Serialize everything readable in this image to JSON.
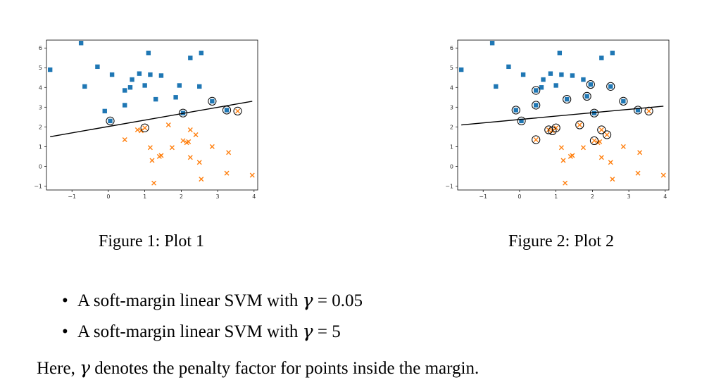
{
  "figures": [
    {
      "caption": "Figure 1: Plot 1",
      "chart_data": {
        "type": "scatter",
        "xlim": [
          -1.7,
          4.1
        ],
        "ylim": [
          -1.2,
          6.4
        ],
        "xticks": [
          -1,
          0,
          1,
          2,
          3,
          4
        ],
        "yticks": [
          -1,
          0,
          1,
          2,
          3,
          4,
          5,
          6
        ],
        "grid": false,
        "series": [
          {
            "marker": "square",
            "color": "#1f77b4",
            "points": [
              [
                -1.6,
                4.9
              ],
              [
                -0.75,
                6.25
              ],
              [
                -0.65,
                4.05
              ],
              [
                -0.3,
                5.05
              ],
              [
                -0.1,
                2.8
              ],
              [
                0.1,
                4.65
              ],
              [
                0.05,
                2.3
              ],
              [
                0.45,
                3.85
              ],
              [
                0.45,
                3.1
              ],
              [
                0.6,
                4.0
              ],
              [
                0.65,
                4.4
              ],
              [
                0.85,
                4.7
              ],
              [
                1.0,
                4.1
              ],
              [
                1.1,
                5.75
              ],
              [
                1.15,
                4.65
              ],
              [
                1.3,
                3.4
              ],
              [
                1.45,
                4.6
              ],
              [
                1.85,
                3.5
              ],
              [
                1.95,
                4.1
              ],
              [
                2.05,
                2.7
              ],
              [
                2.25,
                5.5
              ],
              [
                2.5,
                4.05
              ],
              [
                2.55,
                5.75
              ],
              [
                2.85,
                3.3
              ],
              [
                3.25,
                2.85
              ]
            ]
          },
          {
            "marker": "x",
            "color": "#ff7f0e",
            "points": [
              [
                0.45,
                1.35
              ],
              [
                0.8,
                1.85
              ],
              [
                0.9,
                1.8
              ],
              [
                1.0,
                1.95
              ],
              [
                1.15,
                0.95
              ],
              [
                1.2,
                0.3
              ],
              [
                1.25,
                -0.85
              ],
              [
                1.4,
                0.5
              ],
              [
                1.45,
                0.55
              ],
              [
                1.65,
                2.1
              ],
              [
                1.75,
                0.95
              ],
              [
                2.05,
                1.3
              ],
              [
                2.15,
                1.2
              ],
              [
                2.2,
                1.25
              ],
              [
                2.25,
                1.85
              ],
              [
                2.25,
                0.45
              ],
              [
                2.4,
                1.6
              ],
              [
                2.5,
                0.2
              ],
              [
                2.55,
                -0.65
              ],
              [
                2.85,
                1.0
              ],
              [
                3.25,
                -0.35
              ],
              [
                3.3,
                0.7
              ],
              [
                3.55,
                2.8
              ],
              [
                3.95,
                -0.45
              ]
            ]
          }
        ],
        "circled": [
          [
            0.05,
            2.3
          ],
          [
            1.0,
            1.95
          ],
          [
            2.05,
            2.7
          ],
          [
            2.85,
            3.3
          ],
          [
            3.25,
            2.85
          ],
          [
            3.55,
            2.8
          ]
        ],
        "boundary": [
          [
            -1.6,
            1.5
          ],
          [
            3.95,
            3.3
          ]
        ]
      }
    },
    {
      "caption": "Figure 2: Plot 2",
      "chart_data": {
        "type": "scatter",
        "xlim": [
          -1.7,
          4.1
        ],
        "ylim": [
          -1.2,
          6.4
        ],
        "xticks": [
          -1,
          0,
          1,
          2,
          3,
          4
        ],
        "yticks": [
          -1,
          0,
          1,
          2,
          3,
          4,
          5,
          6
        ],
        "grid": false,
        "series": [
          {
            "marker": "square",
            "color": "#1f77b4",
            "points": [
              [
                -1.6,
                4.9
              ],
              [
                -0.75,
                6.25
              ],
              [
                -0.65,
                4.05
              ],
              [
                -0.3,
                5.05
              ],
              [
                -0.1,
                2.85
              ],
              [
                0.1,
                4.65
              ],
              [
                0.05,
                2.3
              ],
              [
                0.45,
                3.85
              ],
              [
                0.45,
                3.1
              ],
              [
                0.6,
                4.0
              ],
              [
                0.65,
                4.4
              ],
              [
                0.85,
                4.7
              ],
              [
                1.0,
                4.1
              ],
              [
                1.1,
                5.75
              ],
              [
                1.15,
                4.65
              ],
              [
                1.3,
                3.4
              ],
              [
                1.45,
                4.6
              ],
              [
                1.75,
                4.4
              ],
              [
                1.85,
                3.55
              ],
              [
                1.95,
                4.15
              ],
              [
                2.05,
                2.7
              ],
              [
                2.25,
                5.5
              ],
              [
                2.5,
                4.05
              ],
              [
                2.55,
                5.75
              ],
              [
                2.85,
                3.3
              ],
              [
                3.25,
                2.85
              ]
            ]
          },
          {
            "marker": "x",
            "color": "#ff7f0e",
            "points": [
              [
                0.45,
                1.35
              ],
              [
                0.8,
                1.85
              ],
              [
                0.9,
                1.8
              ],
              [
                1.0,
                1.95
              ],
              [
                1.15,
                0.95
              ],
              [
                1.2,
                0.3
              ],
              [
                1.25,
                -0.85
              ],
              [
                1.4,
                0.5
              ],
              [
                1.45,
                0.55
              ],
              [
                1.65,
                2.1
              ],
              [
                1.75,
                0.95
              ],
              [
                2.05,
                1.3
              ],
              [
                2.15,
                1.2
              ],
              [
                2.2,
                1.25
              ],
              [
                2.25,
                1.85
              ],
              [
                2.25,
                0.45
              ],
              [
                2.4,
                1.6
              ],
              [
                2.5,
                0.2
              ],
              [
                2.55,
                -0.65
              ],
              [
                2.85,
                1.0
              ],
              [
                3.25,
                -0.35
              ],
              [
                3.3,
                0.7
              ],
              [
                3.55,
                2.8
              ],
              [
                3.95,
                -0.45
              ]
            ]
          }
        ],
        "circled": [
          [
            -0.1,
            2.85
          ],
          [
            0.05,
            2.3
          ],
          [
            0.45,
            3.85
          ],
          [
            0.45,
            3.1
          ],
          [
            1.3,
            3.4
          ],
          [
            1.85,
            3.55
          ],
          [
            1.95,
            4.15
          ],
          [
            2.05,
            2.7
          ],
          [
            2.5,
            4.05
          ],
          [
            2.85,
            3.3
          ],
          [
            3.25,
            2.85
          ],
          [
            0.45,
            1.35
          ],
          [
            0.8,
            1.85
          ],
          [
            0.9,
            1.8
          ],
          [
            1.0,
            1.95
          ],
          [
            1.65,
            2.1
          ],
          [
            2.05,
            1.3
          ],
          [
            2.25,
            1.85
          ],
          [
            2.4,
            1.6
          ],
          [
            3.55,
            2.8
          ]
        ],
        "boundary": [
          [
            -1.6,
            2.1
          ],
          [
            3.95,
            3.05
          ]
        ]
      }
    }
  ],
  "bullets": [
    {
      "text": "A soft-margin linear SVM with ",
      "symbol": "γ",
      "equals": " = ",
      "value": "0.05"
    },
    {
      "text": "A soft-margin linear SVM with ",
      "symbol": "γ",
      "equals": " = ",
      "value": "5"
    }
  ],
  "note": {
    "prefix": "Here, ",
    "symbol": "γ",
    "suffix": " denotes the penalty factor for points inside the margin."
  }
}
